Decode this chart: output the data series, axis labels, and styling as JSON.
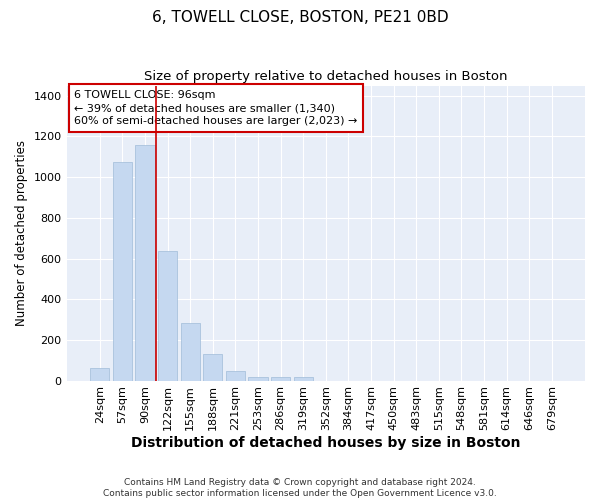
{
  "title_line1": "6, TOWELL CLOSE, BOSTON, PE21 0BD",
  "title_line2": "Size of property relative to detached houses in Boston",
  "xlabel": "Distribution of detached houses by size in Boston",
  "ylabel": "Number of detached properties",
  "categories": [
    "24sqm",
    "57sqm",
    "90sqm",
    "122sqm",
    "155sqm",
    "188sqm",
    "221sqm",
    "253sqm",
    "286sqm",
    "319sqm",
    "352sqm",
    "384sqm",
    "417sqm",
    "450sqm",
    "483sqm",
    "515sqm",
    "548sqm",
    "581sqm",
    "614sqm",
    "646sqm",
    "679sqm"
  ],
  "values": [
    62,
    1075,
    1160,
    635,
    285,
    130,
    45,
    20,
    20,
    18,
    0,
    0,
    0,
    0,
    0,
    0,
    0,
    0,
    0,
    0,
    0
  ],
  "bar_color": "#c5d8f0",
  "bar_edgecolor": "#a0bcd8",
  "vline_color": "#cc0000",
  "vline_x_index": 2.5,
  "annotation_text": "6 TOWELL CLOSE: 96sqm\n← 39% of detached houses are smaller (1,340)\n60% of semi-detached houses are larger (2,023) →",
  "annotation_box_color": "#cc0000",
  "ylim": [
    0,
    1450
  ],
  "yticks": [
    0,
    200,
    400,
    600,
    800,
    1000,
    1200,
    1400
  ],
  "background_color": "#e8eef8",
  "grid_color": "#ffffff",
  "fig_background": "#ffffff",
  "footer_line1": "Contains HM Land Registry data © Crown copyright and database right 2024.",
  "footer_line2": "Contains public sector information licensed under the Open Government Licence v3.0.",
  "title_fontsize": 11,
  "subtitle_fontsize": 9.5,
  "xlabel_fontsize": 10,
  "ylabel_fontsize": 8.5,
  "tick_fontsize": 8,
  "annotation_fontsize": 8,
  "footer_fontsize": 6.5
}
